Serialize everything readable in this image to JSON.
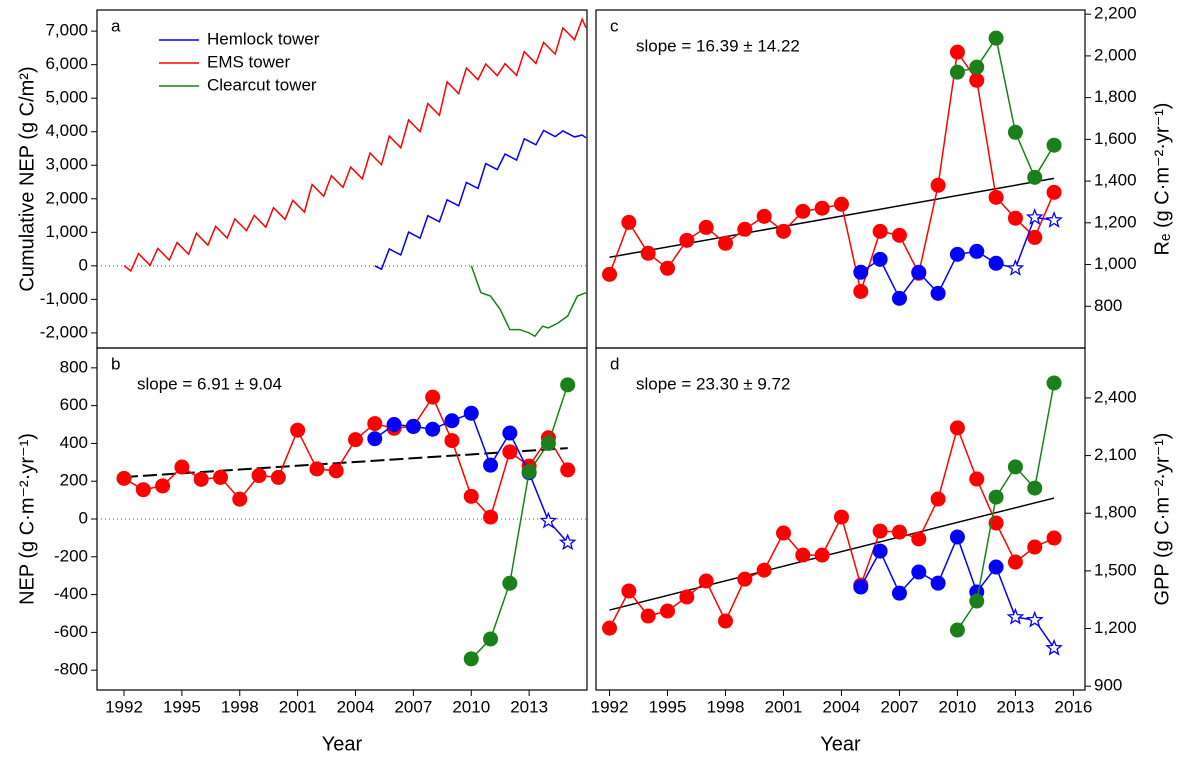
{
  "chart_data": [
    {
      "type": "line",
      "label": "a",
      "ylabel": "Cumulative NEP (g C/m²)",
      "yaxis": "left",
      "xlim": [
        1990.6,
        2016
      ],
      "ylim": [
        -2450,
        7630
      ],
      "yticks": [
        {
          "value": -2000,
          "label": "-2,000"
        },
        {
          "value": -1000,
          "label": "-1,000"
        },
        0,
        {
          "value": 1000,
          "label": "1,000"
        },
        {
          "value": 2000,
          "label": "2,000"
        },
        {
          "value": 3000,
          "label": "3,000"
        },
        {
          "value": 4000,
          "label": "4,000"
        },
        {
          "value": 5000,
          "label": "5,000"
        },
        {
          "value": 6000,
          "label": "6,000"
        },
        {
          "value": 7000,
          "label": "7,000"
        }
      ],
      "hline": 0,
      "legend": "upper left",
      "series": [
        {
          "name": "Hemlock tower",
          "color": "#0000ff",
          "x": [
            2005.0,
            2005.35,
            2005.75,
            2006.35,
            2006.75,
            2007.35,
            2007.75,
            2008.35,
            2008.75,
            2009.35,
            2009.75,
            2010.35,
            2010.75,
            2011.35,
            2011.75,
            2012.35,
            2012.75,
            2013.35,
            2013.75,
            2014.35,
            2014.75,
            2015.35,
            2015.75,
            2015.95
          ],
          "values": [
            0,
            -100,
            505,
            325,
            1005,
            825,
            1495,
            1315,
            1970,
            1790,
            2490,
            2310,
            3050,
            2870,
            3335,
            3155,
            3790,
            3610,
            4035,
            3855,
            4025,
            3845,
            3900,
            3820
          ]
        },
        {
          "name": "EMS tower",
          "color": "#ff0000",
          "x": [
            1992.0,
            1992.35,
            1992.75,
            1993.35,
            1993.75,
            1994.35,
            1994.75,
            1995.35,
            1995.75,
            1996.35,
            1996.75,
            1997.35,
            1997.75,
            1998.35,
            1998.75,
            1999.35,
            1999.75,
            2000.35,
            2000.75,
            2001.35,
            2001.75,
            2002.35,
            2002.75,
            2003.35,
            2003.75,
            2004.35,
            2004.75,
            2005.35,
            2005.75,
            2006.35,
            2006.75,
            2007.35,
            2007.75,
            2008.35,
            2008.75,
            2009.35,
            2009.75,
            2010.35,
            2010.75,
            2011.35,
            2011.75,
            2012.35,
            2012.75,
            2013.35,
            2013.75,
            2014.35,
            2014.75,
            2015.35,
            2015.75,
            2015.95
          ],
          "values": [
            0,
            -150,
            365,
            15,
            520,
            170,
            695,
            345,
            970,
            620,
            1180,
            830,
            1400,
            1050,
            1505,
            1155,
            1735,
            1385,
            1955,
            1605,
            2425,
            2075,
            2690,
            2340,
            2945,
            2595,
            3365,
            3015,
            3870,
            3520,
            4350,
            4000,
            4840,
            4490,
            5485,
            5135,
            5900,
            5550,
            6020,
            5670,
            6030,
            5680,
            6385,
            6035,
            6665,
            6315,
            7095,
            6745,
            7355,
            7100
          ]
        },
        {
          "name": "Clearcut tower",
          "color": "#1a801a",
          "x": [
            2010.0,
            2010.5,
            2011.0,
            2011.5,
            2012.0,
            2012.5,
            2013.0,
            2013.3,
            2013.7,
            2014.0,
            2014.5,
            2015.0,
            2015.5,
            2015.95
          ],
          "values": [
            0,
            -800,
            -900,
            -1300,
            -1900,
            -1900,
            -2000,
            -2100,
            -1800,
            -1850,
            -1700,
            -1500,
            -900,
            -800
          ]
        }
      ]
    },
    {
      "type": "line",
      "label": "b",
      "annotation": "slope = 6.91 ± 9.04",
      "ylabel": "NEP (g C·m⁻²·yr⁻¹)",
      "xlabel": "Year",
      "yaxis": "left",
      "x": [
        1992,
        1993,
        1994,
        1995,
        1996,
        1997,
        1998,
        1999,
        2000,
        2001,
        2002,
        2003,
        2004,
        2005,
        2006,
        2007,
        2008,
        2009,
        2010,
        2011,
        2012,
        2013,
        2014,
        2015
      ],
      "xlim": [
        1990.6,
        2016
      ],
      "xticks": [
        1992,
        1995,
        1998,
        2001,
        2004,
        2007,
        2010,
        2013
      ],
      "ylim": [
        -905,
        905
      ],
      "yticks": [
        -800,
        -600,
        -400,
        -200,
        0,
        200,
        400,
        600,
        800
      ],
      "hline": 0,
      "marker": "circle",
      "trend": {
        "x": [
          1992,
          2015
        ],
        "values": [
          222,
          375
        ],
        "dashed": true
      },
      "series": [
        {
          "color": "#ff0000",
          "values": [
            215,
            155,
            175,
            275,
            210,
            220,
            105,
            230,
            220,
            470,
            265,
            255,
            420,
            505,
            480,
            490,
            645,
            415,
            120,
            10,
            355,
            280,
            430,
            260
          ]
        },
        {
          "color": "#0000ff",
          "values": [
            null,
            null,
            null,
            null,
            null,
            null,
            null,
            null,
            null,
            null,
            null,
            null,
            null,
            425,
            500,
            490,
            475,
            520,
            560,
            285,
            455,
            245,
            -10,
            -125
          ],
          "markers": [
            null,
            null,
            null,
            null,
            null,
            null,
            null,
            null,
            null,
            null,
            null,
            null,
            null,
            "circle",
            "circle",
            "circle",
            "circle",
            "circle",
            "circle",
            "circle",
            "circle",
            "circle",
            "star",
            "star"
          ]
        },
        {
          "color": "#1a801a",
          "values": [
            null,
            null,
            null,
            null,
            null,
            null,
            null,
            null,
            null,
            null,
            null,
            null,
            null,
            null,
            null,
            null,
            null,
            null,
            -740,
            -635,
            -340,
            250,
            400,
            710
          ]
        }
      ]
    },
    {
      "type": "line",
      "label": "c",
      "annotation": "slope = 16.39 ± 14.22",
      "ylabel": "Rₑ (g C·m⁻²·yr⁻¹)",
      "yaxis": "right",
      "x": [
        1992,
        1993,
        1994,
        1995,
        1996,
        1997,
        1998,
        1999,
        2000,
        2001,
        2002,
        2003,
        2004,
        2005,
        2006,
        2007,
        2008,
        2009,
        2010,
        2011,
        2012,
        2013,
        2014,
        2015
      ],
      "xlim": [
        1991.3,
        2016.6
      ],
      "ylim": [
        600,
        2220
      ],
      "yticks": [
        800,
        {
          "value": 1000,
          "label": "1,000"
        },
        {
          "value": 1200,
          "label": "1,200"
        },
        {
          "value": 1400,
          "label": "1,400"
        },
        {
          "value": 1600,
          "label": "1,600"
        },
        {
          "value": 1800,
          "label": "1,800"
        },
        {
          "value": 2000,
          "label": "2,000"
        },
        {
          "value": 2200,
          "label": "2,200"
        }
      ],
      "marker": "circle",
      "trend": {
        "x": [
          1992,
          2015
        ],
        "values": [
          1035,
          1413
        ],
        "dashed": false
      },
      "series": [
        {
          "color": "#ff0000",
          "values": [
            953,
            1202,
            1054,
            982,
            1116,
            1178,
            1102,
            1169,
            1231,
            1159,
            1255,
            1270,
            1289,
            871,
            1159,
            1140,
            958,
            1380,
            2018,
            1883,
            1322,
            1222,
            1130,
            1346
          ]
        },
        {
          "color": "#0000ff",
          "values": [
            null,
            null,
            null,
            null,
            null,
            null,
            null,
            null,
            null,
            null,
            null,
            null,
            null,
            963,
            1025,
            838,
            963,
            862,
            1049,
            1063,
            1006,
            982,
            1226,
            1212
          ],
          "markers": [
            null,
            null,
            null,
            null,
            null,
            null,
            null,
            null,
            null,
            null,
            null,
            null,
            null,
            "circle",
            "circle",
            "circle",
            "circle",
            "circle",
            "circle",
            "circle",
            "circle",
            "star",
            "star",
            "star"
          ]
        },
        {
          "color": "#1a801a",
          "values": [
            null,
            null,
            null,
            null,
            null,
            null,
            null,
            null,
            null,
            null,
            null,
            null,
            null,
            null,
            null,
            null,
            null,
            null,
            1922,
            1946,
            2085,
            1634,
            1418,
            1572
          ]
        }
      ]
    },
    {
      "type": "line",
      "label": "d",
      "annotation": "slope = 23.30 ± 9.72",
      "ylabel": "GPP (g C·m⁻²·yr⁻¹)",
      "xlabel": "Year",
      "yaxis": "right",
      "x": [
        1992,
        1993,
        1994,
        1995,
        1996,
        1997,
        1998,
        1999,
        2000,
        2001,
        2002,
        2003,
        2004,
        2005,
        2006,
        2007,
        2008,
        2009,
        2010,
        2011,
        2012,
        2013,
        2014,
        2015
      ],
      "xlim": [
        1991.3,
        2016.6
      ],
      "xticks": [
        1992,
        1995,
        1998,
        2001,
        2004,
        2007,
        2010,
        2013,
        2016
      ],
      "ylim": [
        880,
        2660
      ],
      "yticks": [
        900,
        {
          "value": 1200,
          "label": "1,200"
        },
        {
          "value": 1500,
          "label": "1,500"
        },
        {
          "value": 1800,
          "label": "1,800"
        },
        {
          "value": 2100,
          "label": "2,100"
        },
        {
          "value": 2400,
          "label": "2,400"
        }
      ],
      "marker": "circle",
      "trend": {
        "x": [
          1992,
          2015
        ],
        "values": [
          1296,
          1879
        ],
        "dashed": false
      },
      "series": [
        {
          "color": "#ff0000",
          "values": [
            1202,
            1395,
            1265,
            1291,
            1364,
            1447,
            1239,
            1457,
            1504,
            1697,
            1582,
            1582,
            1780,
            1426,
            1707,
            1702,
            1666,
            1874,
            2244,
            1978,
            1749,
            1546,
            1624,
            1671
          ]
        },
        {
          "color": "#0000ff",
          "values": [
            null,
            null,
            null,
            null,
            null,
            null,
            null,
            null,
            null,
            null,
            null,
            null,
            null,
            1416,
            1603,
            1384,
            1494,
            1436,
            1676,
            1390,
            1520,
            1259,
            1244,
            1098
          ],
          "markers": [
            null,
            null,
            null,
            null,
            null,
            null,
            null,
            null,
            null,
            null,
            null,
            null,
            null,
            "circle",
            "circle",
            "circle",
            "circle",
            "circle",
            "circle",
            "circle",
            "circle",
            "star",
            "star",
            "star"
          ]
        },
        {
          "color": "#1a801a",
          "values": [
            null,
            null,
            null,
            null,
            null,
            null,
            null,
            null,
            null,
            null,
            null,
            null,
            null,
            null,
            null,
            null,
            null,
            null,
            1192,
            1343,
            1884,
            2041,
            1931,
            2478
          ]
        }
      ]
    }
  ]
}
